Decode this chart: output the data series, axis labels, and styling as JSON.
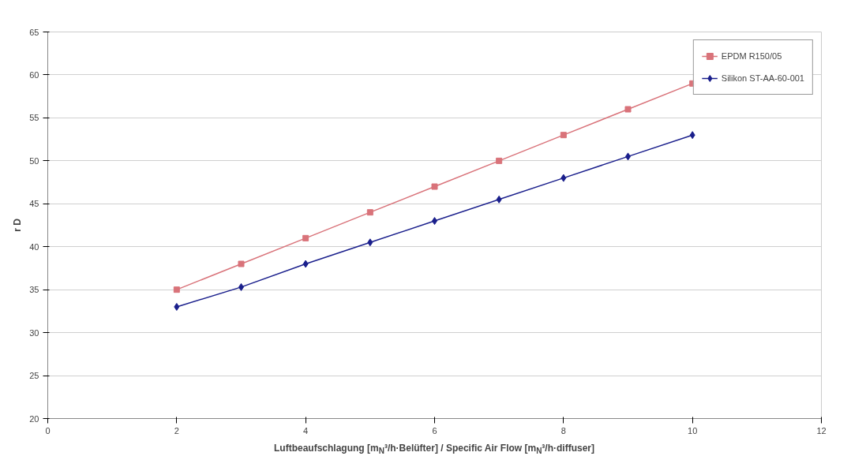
{
  "chart_data": {
    "type": "line",
    "xlabel": "Luftbeaufschlagung  [m$_{N}$³/h·Belüfter] / Specific Air Flow [m$_{N}$³/h·diffuser]",
    "ylabel": "r D",
    "x": [
      2,
      3,
      4,
      5,
      6,
      7,
      8,
      9,
      10
    ],
    "series": [
      {
        "name": "EPDM R150/05",
        "color": "#d9737a",
        "marker": "square",
        "values": [
          35,
          38,
          41,
          44,
          47,
          50,
          53,
          56,
          59
        ]
      },
      {
        "name": "Silikon ST-AA-60-001",
        "color": "#1a1f8c",
        "marker": "diamond",
        "values": [
          33,
          35.3,
          38,
          40.5,
          43,
          45.5,
          48,
          50.5,
          53
        ]
      }
    ],
    "xlim": [
      0,
      12
    ],
    "xticks": [
      0,
      2,
      4,
      6,
      8,
      10,
      12
    ],
    "ylim": [
      20,
      65
    ],
    "yticks": [
      20,
      25,
      30,
      35,
      40,
      45,
      50,
      55,
      60,
      65
    ],
    "grid": "y",
    "legend": "top right"
  }
}
